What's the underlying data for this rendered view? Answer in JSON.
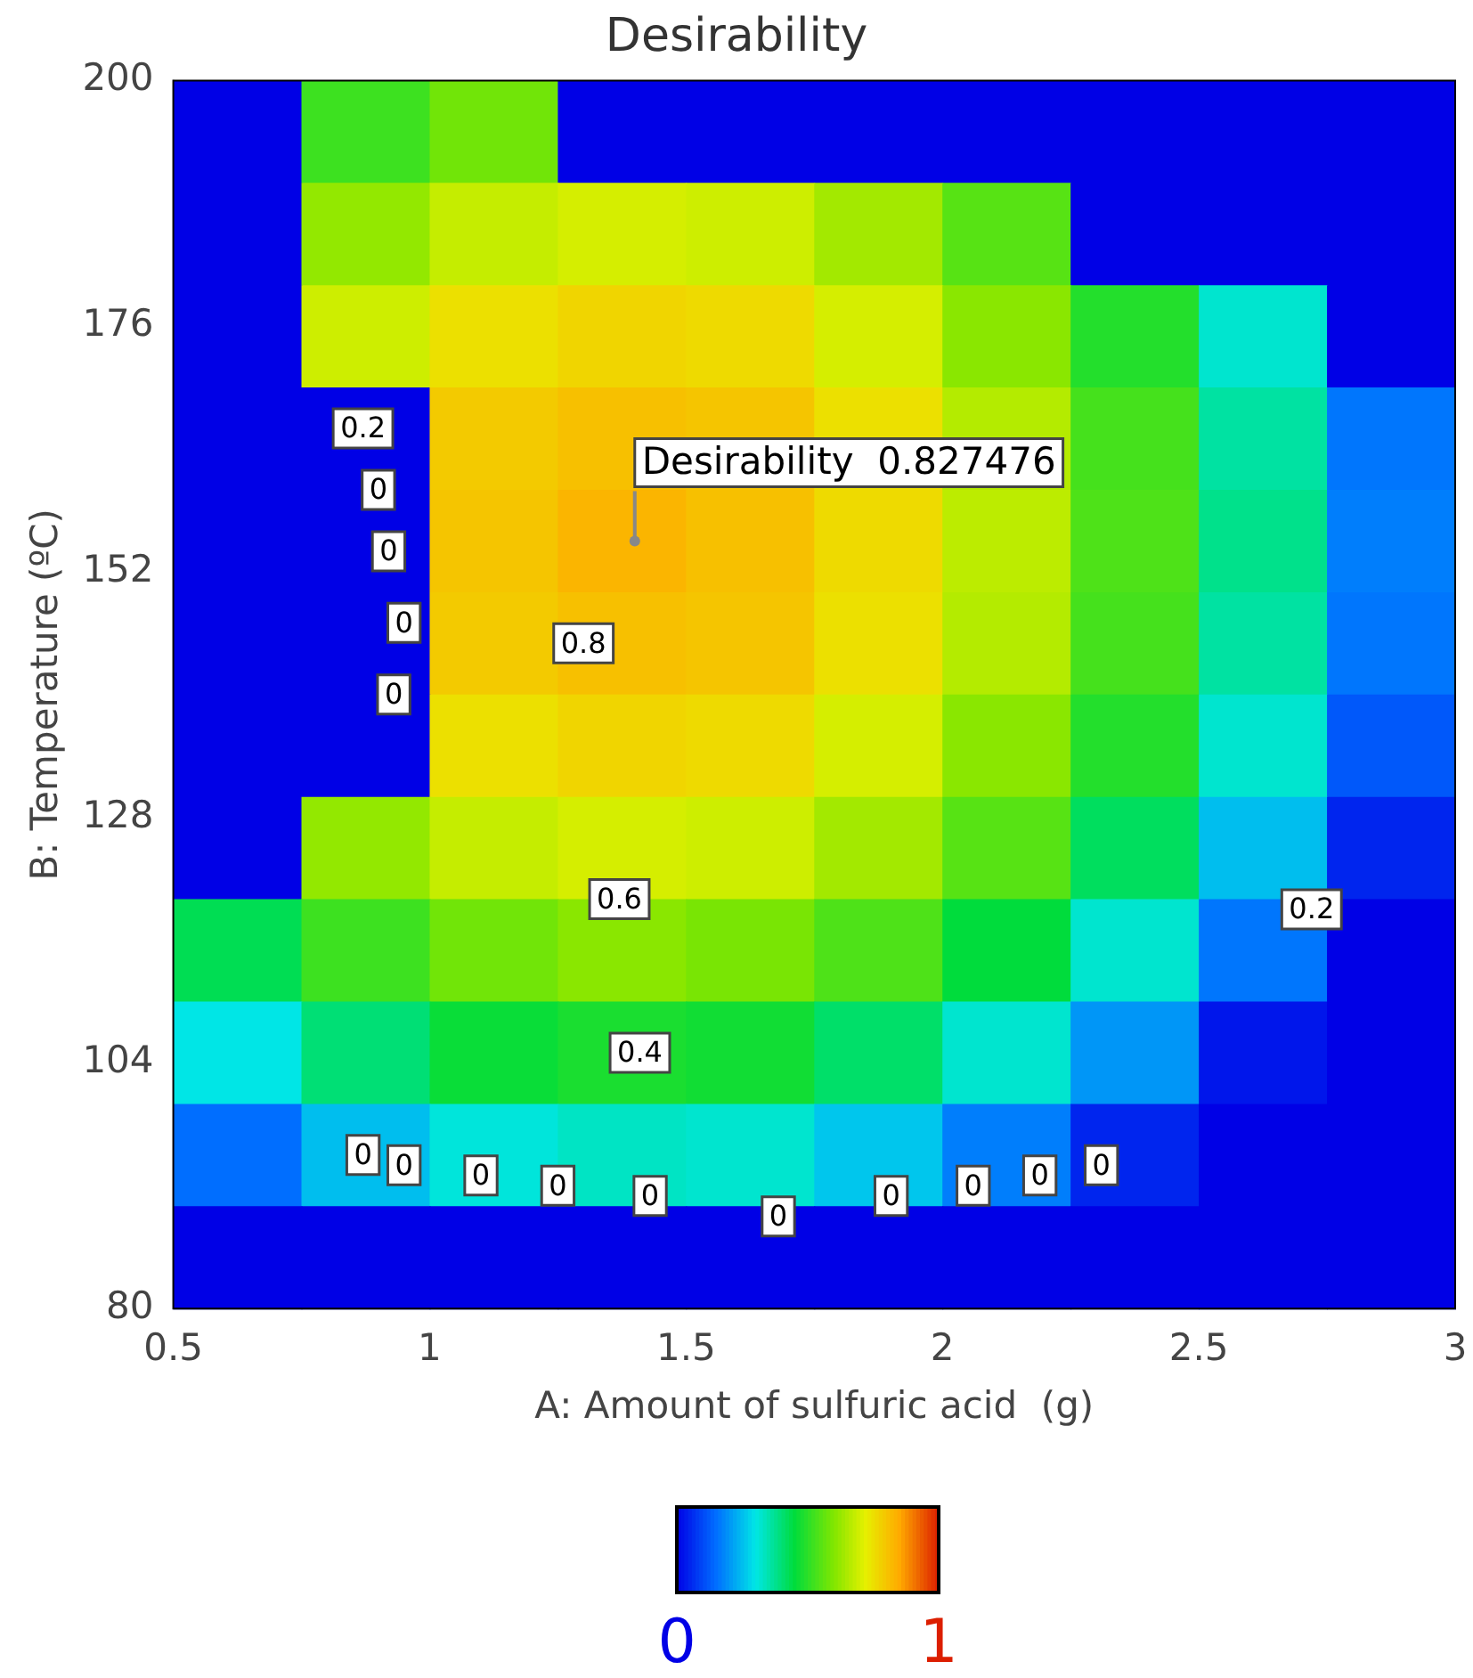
{
  "chart_data": {
    "type": "heatmap",
    "title": "Desirability",
    "xlabel": "A: Amount of sulfuric acid  (g)",
    "ylabel": "B: Temperature (ºC)",
    "xlim": [
      0.5,
      3
    ],
    "ylim": [
      80,
      200
    ],
    "xticks": [
      0.5,
      1,
      1.5,
      2,
      2.5,
      3
    ],
    "yticks": [
      80,
      104,
      128,
      152,
      176,
      200
    ],
    "clim": [
      0,
      1
    ],
    "cticks": [
      0,
      1
    ],
    "cells": [
      [
        0,
        0.52,
        0.58,
        0,
        0,
        0,
        0,
        0,
        0,
        0
      ],
      [
        0,
        0.62,
        0.68,
        0.7,
        0.69,
        0.64,
        0.55,
        0,
        0,
        0
      ],
      [
        0,
        0.69,
        0.75,
        0.77,
        0.76,
        0.7,
        0.61,
        0.49,
        0.32,
        0
      ],
      [
        0,
        0,
        0.79,
        0.81,
        0.8,
        0.75,
        0.66,
        0.53,
        0.36,
        0.16
      ],
      [
        0,
        0,
        0.8,
        0.83,
        0.81,
        0.76,
        0.67,
        0.54,
        0.38,
        0.17
      ],
      [
        0,
        0,
        0.79,
        0.81,
        0.8,
        0.75,
        0.66,
        0.53,
        0.36,
        0.16
      ],
      [
        0,
        0,
        0.75,
        0.77,
        0.76,
        0.7,
        0.61,
        0.49,
        0.32,
        0.12
      ],
      [
        0,
        0.62,
        0.68,
        0.7,
        0.69,
        0.64,
        0.55,
        0.42,
        0.25,
        0.05
      ],
      [
        0.43,
        0.52,
        0.58,
        0.61,
        0.59,
        0.54,
        0.45,
        0.32,
        0.16,
        0
      ],
      [
        0.3,
        0.4,
        0.46,
        0.48,
        0.47,
        0.41,
        0.32,
        0.2,
        0.03,
        0
      ],
      [
        0.15,
        0.25,
        0.31,
        0.33,
        0.32,
        0.26,
        0.17,
        0.05,
        0,
        0
      ],
      [
        0,
        0,
        0,
        0,
        0,
        0,
        0,
        0,
        0,
        0
      ]
    ],
    "annotations": [
      {
        "text": "Desirability  0.827476",
        "x": 1.4,
        "y": 155
      },
      {
        "text": "0.2",
        "x": 0.87,
        "y": 166
      },
      {
        "text": "0",
        "x": 0.9,
        "y": 160
      },
      {
        "text": "0",
        "x": 0.92,
        "y": 154
      },
      {
        "text": "0",
        "x": 0.95,
        "y": 147
      },
      {
        "text": "0",
        "x": 0.93,
        "y": 140
      },
      {
        "text": "0.8",
        "x": 1.3,
        "y": 145
      },
      {
        "text": "0.6",
        "x": 1.37,
        "y": 120
      },
      {
        "text": "0.4",
        "x": 1.41,
        "y": 105
      },
      {
        "text": "0.2",
        "x": 2.72,
        "y": 119
      },
      {
        "text": "0",
        "x": 0.87,
        "y": 95
      },
      {
        "text": "0",
        "x": 0.95,
        "y": 94
      },
      {
        "text": "0",
        "x": 1.1,
        "y": 93
      },
      {
        "text": "0",
        "x": 1.25,
        "y": 92
      },
      {
        "text": "0",
        "x": 1.43,
        "y": 91
      },
      {
        "text": "0",
        "x": 1.68,
        "y": 89
      },
      {
        "text": "0",
        "x": 1.9,
        "y": 91
      },
      {
        "text": "0",
        "x": 2.06,
        "y": 92
      },
      {
        "text": "0",
        "x": 2.19,
        "y": 93
      },
      {
        "text": "0",
        "x": 2.31,
        "y": 94
      }
    ]
  }
}
